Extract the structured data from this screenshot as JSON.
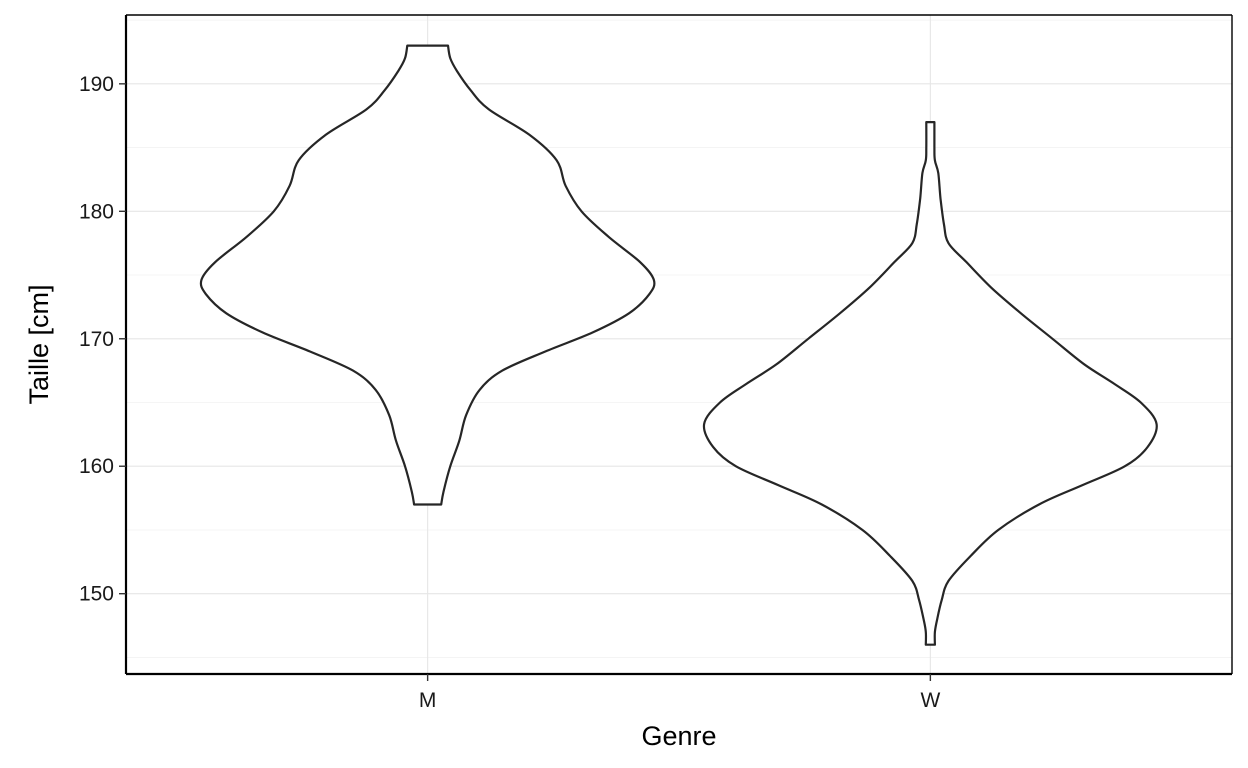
{
  "chart_data": {
    "type": "violin",
    "xlabel": "Genre",
    "ylabel": "Taille  [cm]",
    "categories": [
      "M",
      "W"
    ],
    "ylim": [
      143.7,
      195.4
    ],
    "yticks": [
      150,
      160,
      170,
      180,
      190
    ],
    "grid": true,
    "series": [
      {
        "category": "M",
        "min": 157,
        "max": 193,
        "density_profile": [
          [
            157.0,
            0.06
          ],
          [
            158.0,
            0.07
          ],
          [
            160.0,
            0.1
          ],
          [
            162.0,
            0.14
          ],
          [
            164.0,
            0.17
          ],
          [
            166.0,
            0.23
          ],
          [
            167.5,
            0.33
          ],
          [
            169.0,
            0.52
          ],
          [
            170.5,
            0.73
          ],
          [
            172.0,
            0.89
          ],
          [
            173.5,
            0.98
          ],
          [
            174.6,
            1.0
          ],
          [
            176.0,
            0.94
          ],
          [
            178.0,
            0.8
          ],
          [
            180.0,
            0.68
          ],
          [
            182.0,
            0.61
          ],
          [
            184.0,
            0.57
          ],
          [
            186.0,
            0.45
          ],
          [
            188.0,
            0.27
          ],
          [
            189.5,
            0.19
          ],
          [
            191.0,
            0.13
          ],
          [
            192.0,
            0.1
          ],
          [
            193.0,
            0.09
          ]
        ]
      },
      {
        "category": "W",
        "min": 146,
        "max": 187,
        "density_profile": [
          [
            146.0,
            0.02
          ],
          [
            147.0,
            0.02
          ],
          [
            148.0,
            0.03
          ],
          [
            149.5,
            0.05
          ],
          [
            151.0,
            0.08
          ],
          [
            153.0,
            0.18
          ],
          [
            155.0,
            0.3
          ],
          [
            157.0,
            0.48
          ],
          [
            158.5,
            0.67
          ],
          [
            160.0,
            0.86
          ],
          [
            161.5,
            0.96
          ],
          [
            163.3,
            1.0
          ],
          [
            165.0,
            0.93
          ],
          [
            166.5,
            0.81
          ],
          [
            168.0,
            0.68
          ],
          [
            170.0,
            0.54
          ],
          [
            172.0,
            0.4
          ],
          [
            174.0,
            0.27
          ],
          [
            176.0,
            0.16
          ],
          [
            177.5,
            0.08
          ],
          [
            179.0,
            0.06
          ],
          [
            181.0,
            0.045
          ],
          [
            183.0,
            0.035
          ],
          [
            184.0,
            0.02
          ],
          [
            185.0,
            0.018
          ],
          [
            187.0,
            0.018
          ]
        ]
      }
    ]
  }
}
